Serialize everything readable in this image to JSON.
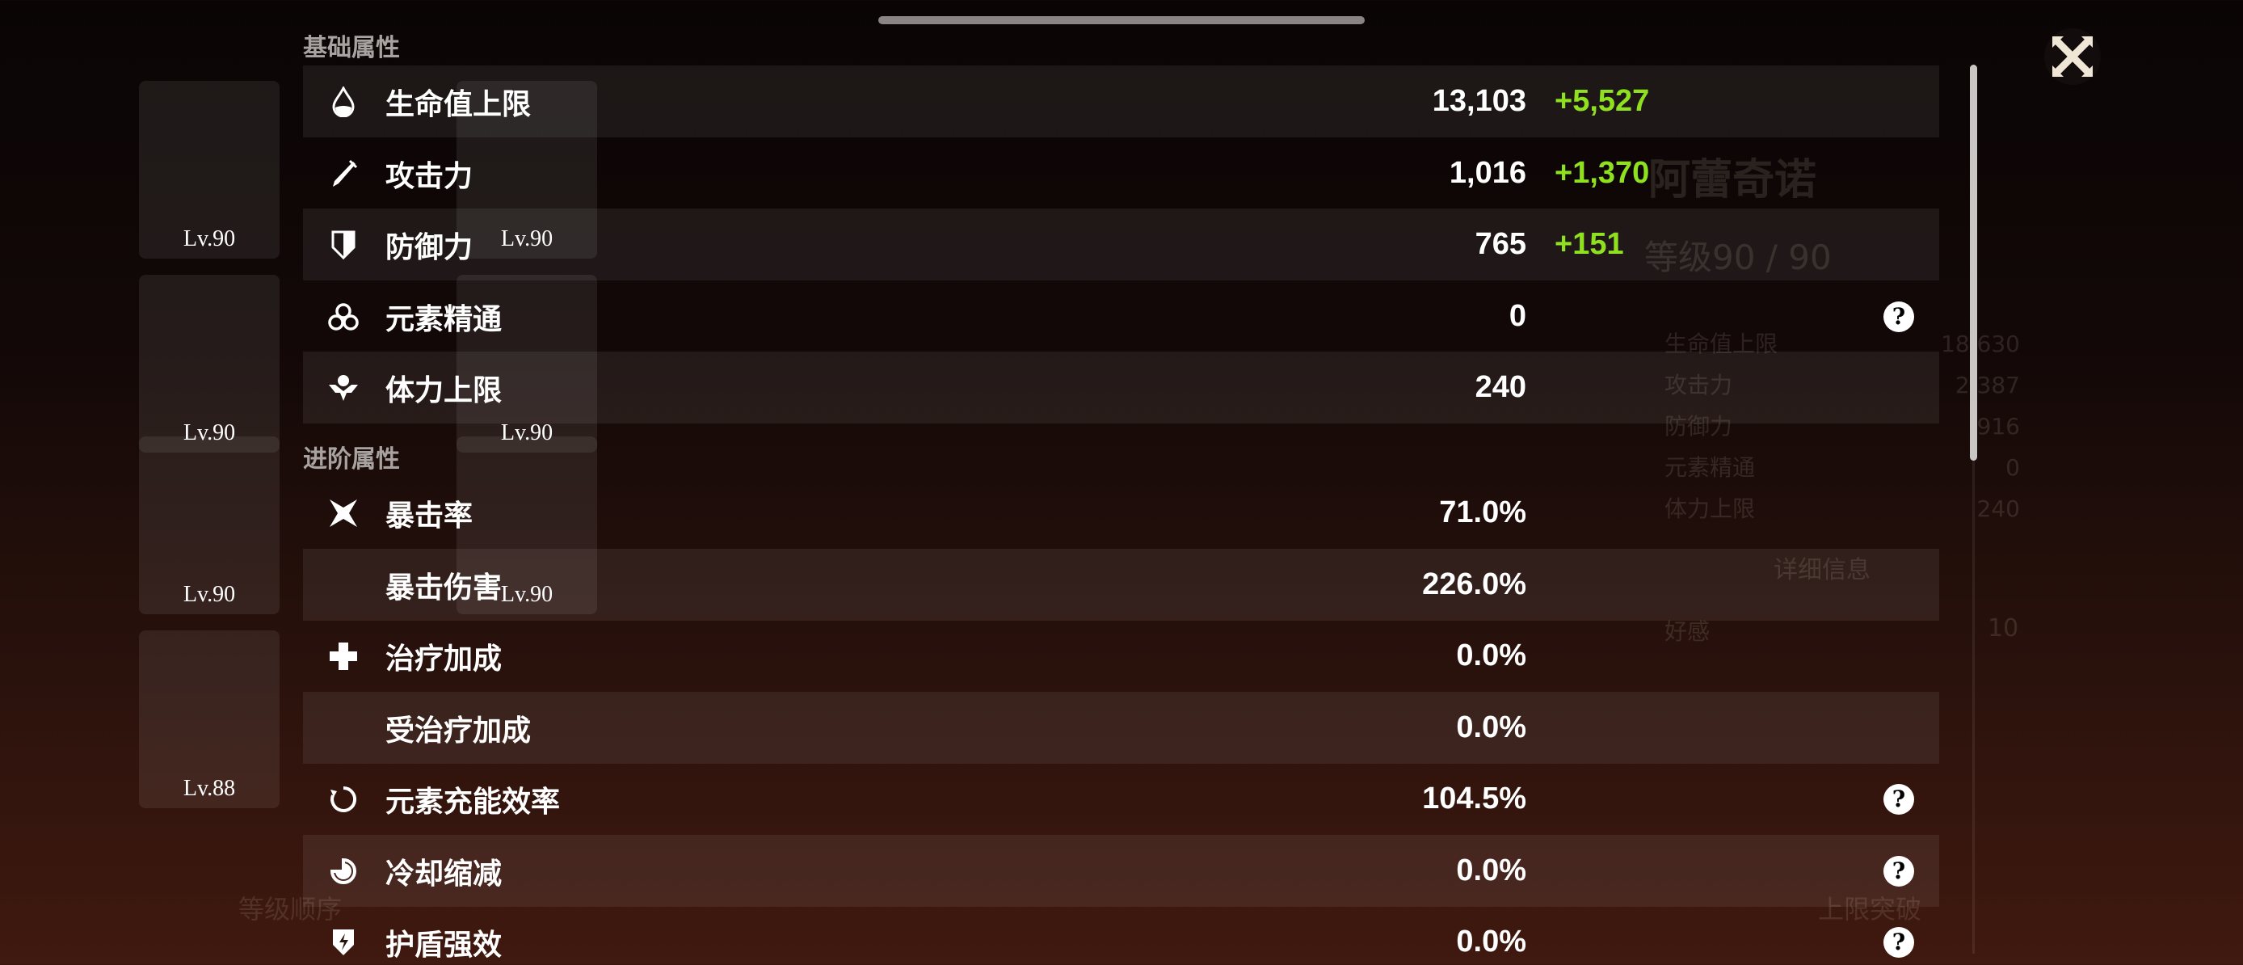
{
  "background": {
    "character_name": "阿蕾奇诺",
    "level": "等级90 / 90",
    "card_levels": [
      "Lv.90",
      "Lv.90",
      "Lv.90",
      "Lv.90",
      "Lv.90",
      "Lv.90",
      "Lv.88"
    ],
    "mini_stats": [
      {
        "label": "生命值上限",
        "value": "18,630"
      },
      {
        "label": "攻击力",
        "value": "2,387"
      },
      {
        "label": "防御力",
        "value": "916"
      },
      {
        "label": "元素精通",
        "value": "0"
      },
      {
        "label": "体力上限",
        "value": "240"
      }
    ],
    "details_button": "详细信息",
    "friendship_label": "好感",
    "friendship_value": "10",
    "sort_select": "等级顺序",
    "ascend_button": "上限突破"
  },
  "basic": {
    "title": "基础属性",
    "rows": [
      {
        "icon": "hp-drop-icon",
        "label": "生命值上限",
        "value": "13,103",
        "bonus": "+5,527"
      },
      {
        "icon": "sword-icon",
        "label": "攻击力",
        "value": "1,016",
        "bonus": "+1,370"
      },
      {
        "icon": "shield-icon",
        "label": "防御力",
        "value": "765",
        "bonus": "+151"
      },
      {
        "icon": "elemental-mastery-icon",
        "label": "元素精通",
        "value": "0",
        "help": "?"
      },
      {
        "icon": "stamina-icon",
        "label": "体力上限",
        "value": "240"
      }
    ]
  },
  "advanced": {
    "title": "进阶属性",
    "rows": [
      {
        "icon": "crit-rate-icon",
        "label": "暴击率",
        "value": "71.0%"
      },
      {
        "label": "暴击伤害",
        "value": "226.0%"
      },
      {
        "icon": "healing-cross-icon",
        "label": "治疗加成",
        "value": "0.0%"
      },
      {
        "label": "受治疗加成",
        "value": "0.0%"
      },
      {
        "icon": "energy-recharge-icon",
        "label": "元素充能效率",
        "value": "104.5%",
        "help": "?"
      },
      {
        "icon": "cooldown-icon",
        "label": "冷却缩减",
        "value": "0.0%",
        "help": "?"
      },
      {
        "icon": "shield-strength-icon",
        "label": "护盾强效",
        "value": "0.0%",
        "help": "?"
      }
    ]
  },
  "colors": {
    "bonus": "#8fe01e"
  }
}
